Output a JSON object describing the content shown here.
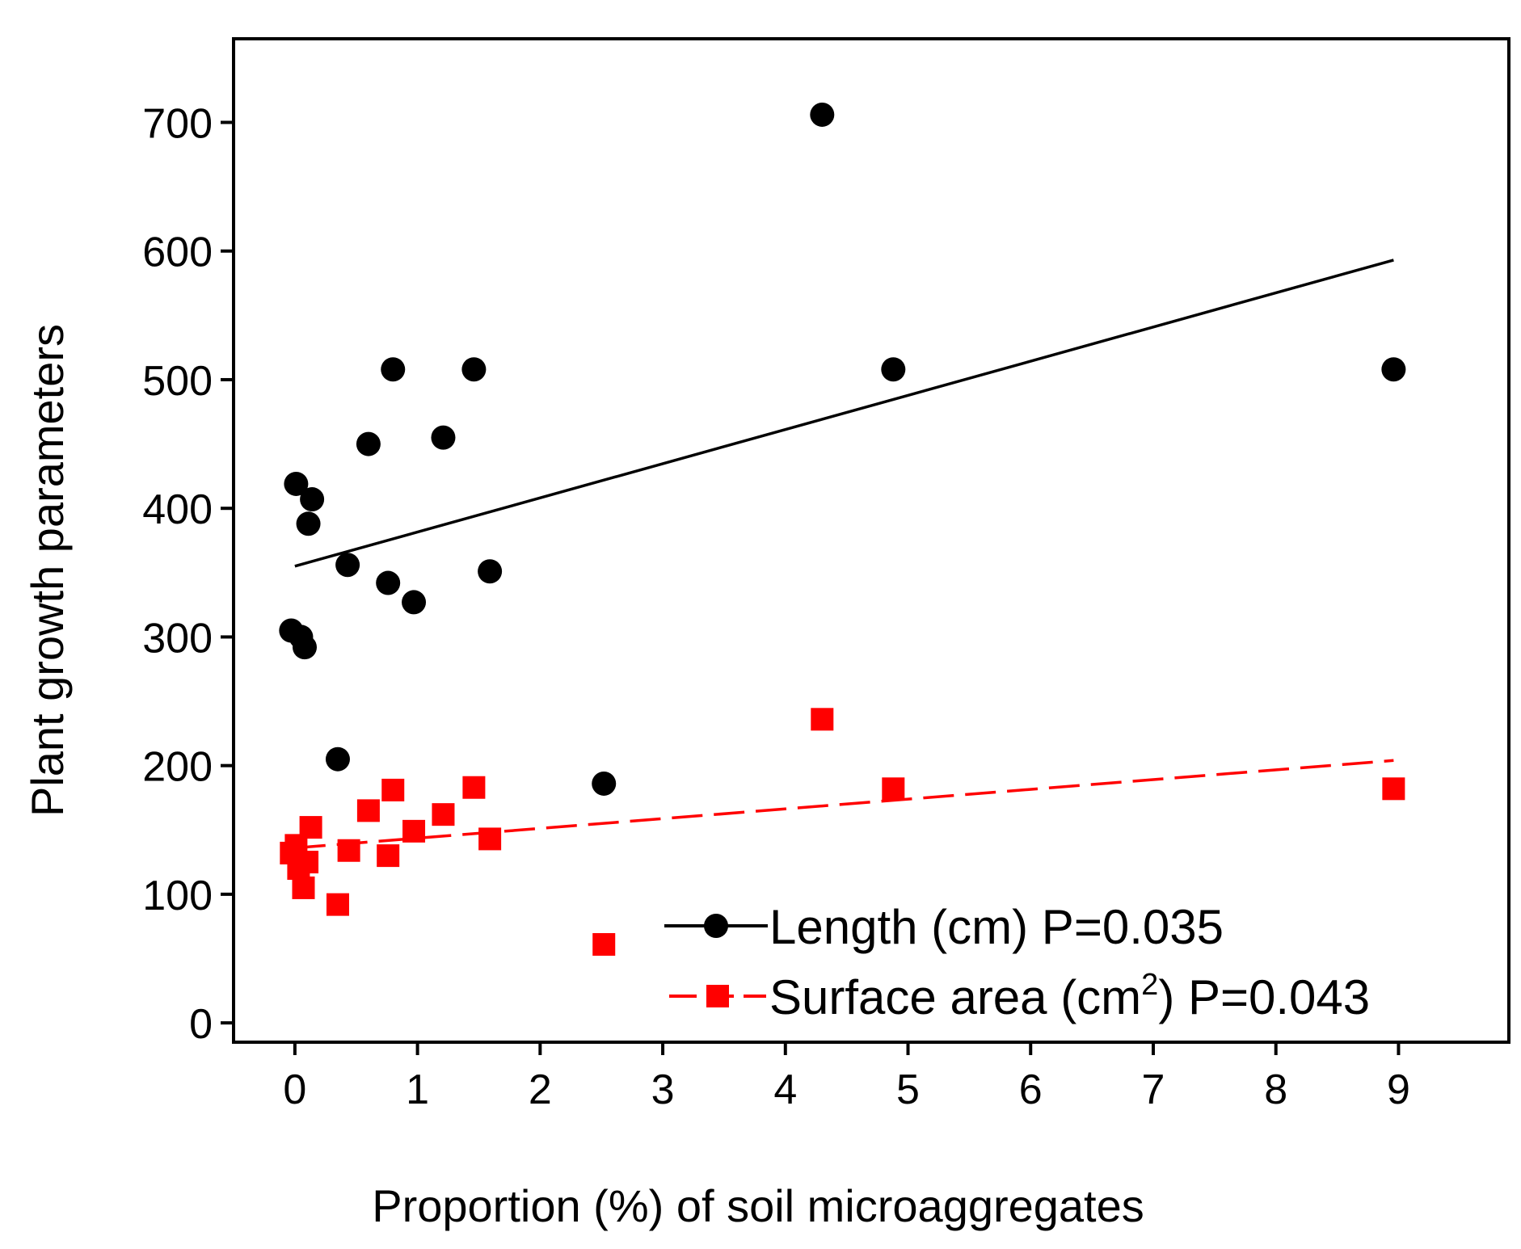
{
  "chart_data": {
    "type": "scatter",
    "title": "",
    "xlabel": "Proportion (%) of soil microaggregates",
    "ylabel": "Plant growth parameters",
    "xlim": [
      -0.5,
      9.9
    ],
    "ylim": [
      -15,
      765
    ],
    "xticks": [
      0,
      1,
      2,
      3,
      4,
      5,
      6,
      7,
      8,
      9
    ],
    "yticks": [
      0,
      100,
      200,
      300,
      400,
      500,
      600,
      700
    ],
    "grid": false,
    "legend_position": "bottom-right",
    "series": [
      {
        "name": "Length (cm) P=0.035",
        "marker": "circle",
        "color": "#000000",
        "line_style": "solid",
        "points": [
          {
            "x": -0.03,
            "y": 305
          },
          {
            "x": 0.01,
            "y": 419
          },
          {
            "x": 0.05,
            "y": 300
          },
          {
            "x": 0.08,
            "y": 292
          },
          {
            "x": 0.11,
            "y": 388
          },
          {
            "x": 0.14,
            "y": 407
          },
          {
            "x": 0.35,
            "y": 205
          },
          {
            "x": 0.43,
            "y": 356
          },
          {
            "x": 0.6,
            "y": 450
          },
          {
            "x": 0.76,
            "y": 342
          },
          {
            "x": 0.8,
            "y": 508
          },
          {
            "x": 0.97,
            "y": 327
          },
          {
            "x": 1.21,
            "y": 455
          },
          {
            "x": 1.46,
            "y": 508
          },
          {
            "x": 1.59,
            "y": 351
          },
          {
            "x": 2.52,
            "y": 186
          },
          {
            "x": 4.3,
            "y": 706
          },
          {
            "x": 4.88,
            "y": 508
          },
          {
            "x": 8.96,
            "y": 508
          }
        ],
        "trendline": {
          "x": [
            0,
            8.96
          ],
          "y": [
            355,
            593
          ]
        }
      },
      {
        "name_parts": [
          "Surface area (cm",
          "2",
          ") P=0.043"
        ],
        "marker": "square",
        "color": "#ff0000",
        "line_style": "dashed",
        "points": [
          {
            "x": -0.03,
            "y": 132
          },
          {
            "x": 0.01,
            "y": 138
          },
          {
            "x": 0.03,
            "y": 120
          },
          {
            "x": 0.07,
            "y": 105
          },
          {
            "x": 0.1,
            "y": 125
          },
          {
            "x": 0.13,
            "y": 152
          },
          {
            "x": 0.35,
            "y": 92
          },
          {
            "x": 0.44,
            "y": 134
          },
          {
            "x": 0.6,
            "y": 165
          },
          {
            "x": 0.76,
            "y": 130
          },
          {
            "x": 0.8,
            "y": 181
          },
          {
            "x": 0.97,
            "y": 149
          },
          {
            "x": 1.21,
            "y": 162
          },
          {
            "x": 1.46,
            "y": 183
          },
          {
            "x": 1.59,
            "y": 143
          },
          {
            "x": 2.52,
            "y": 61
          },
          {
            "x": 4.3,
            "y": 236
          },
          {
            "x": 4.88,
            "y": 182
          },
          {
            "x": 8.96,
            "y": 182
          }
        ],
        "trendline": {
          "x": [
            0,
            8.96
          ],
          "y": [
            136,
            204
          ]
        }
      }
    ]
  }
}
